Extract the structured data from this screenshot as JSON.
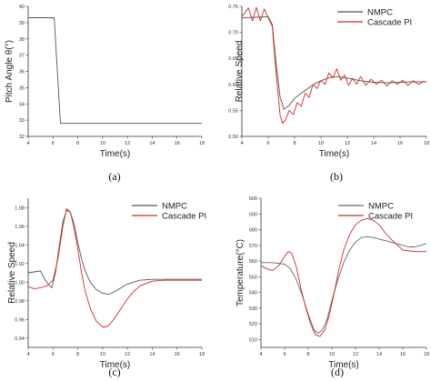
{
  "chart_data": [
    {
      "type": "line",
      "caption": "(a)",
      "xlabel": "Time(s)",
      "ylabel": "Pitch Angle θ(°)",
      "xlim": [
        4,
        18
      ],
      "ylim": [
        32,
        40
      ],
      "xticks": [
        4,
        6,
        8,
        10,
        12,
        14,
        16,
        18
      ],
      "yticks": [
        32,
        33,
        34,
        35,
        36,
        37,
        38,
        39,
        40
      ],
      "legend": "none",
      "series": [
        {
          "color": "#555555",
          "x": [
            4,
            6.1,
            6.6,
            18
          ],
          "y": [
            39.3,
            39.3,
            32.8,
            32.8
          ]
        }
      ]
    },
    {
      "type": "line",
      "caption": "(b)",
      "xlabel": "Time(s)",
      "ylabel": "Relative Speed",
      "xlim": [
        4,
        18
      ],
      "ylim": [
        0.5,
        0.75
      ],
      "xticks": [
        4,
        6,
        8,
        10,
        12,
        14,
        16,
        18
      ],
      "yticks": [
        0.5,
        0.55,
        0.6,
        0.65,
        0.7,
        0.75
      ],
      "legend": "top-right",
      "series": [
        {
          "name": "NMPC",
          "color": "#555555",
          "x": [
            4,
            5,
            6,
            6.3,
            6.6,
            6.9,
            7.2,
            7.6,
            8,
            8.5,
            9,
            9.5,
            10,
            10.5,
            11,
            11.5,
            12,
            13,
            14,
            15,
            16,
            17,
            18
          ],
          "y": [
            0.728,
            0.729,
            0.73,
            0.715,
            0.64,
            0.575,
            0.552,
            0.56,
            0.573,
            0.583,
            0.592,
            0.601,
            0.607,
            0.612,
            0.615,
            0.614,
            0.612,
            0.607,
            0.604,
            0.603,
            0.604,
            0.605,
            0.605
          ]
        },
        {
          "name": "Cascade PI",
          "color": "#d22b2b",
          "x": [
            4,
            4.5,
            4.8,
            5.1,
            5.4,
            5.7,
            6,
            6.3,
            6.6,
            6.9,
            7.1,
            7.3,
            7.6,
            7.9,
            8.2,
            8.5,
            8.8,
            9.1,
            9.4,
            9.7,
            10,
            10.3,
            10.6,
            10.9,
            11.2,
            11.5,
            11.8,
            12.1,
            12.4,
            12.7,
            13,
            13.4,
            13.8,
            14.2,
            14.6,
            15,
            15.4,
            15.8,
            16.2,
            16.6,
            17,
            17.4,
            17.8,
            18
          ],
          "y": [
            0.73,
            0.747,
            0.722,
            0.748,
            0.722,
            0.745,
            0.728,
            0.712,
            0.62,
            0.54,
            0.525,
            0.532,
            0.55,
            0.542,
            0.565,
            0.558,
            0.583,
            0.575,
            0.6,
            0.592,
            0.608,
            0.6,
            0.622,
            0.612,
            0.63,
            0.608,
            0.618,
            0.598,
            0.612,
            0.6,
            0.615,
            0.598,
            0.61,
            0.6,
            0.608,
            0.597,
            0.607,
            0.6,
            0.608,
            0.598,
            0.607,
            0.6,
            0.606,
            0.604
          ]
        }
      ]
    },
    {
      "type": "line",
      "caption": "(c)",
      "xlabel": "Time(s)",
      "ylabel": "Relative Speed",
      "xlim": [
        4,
        18
      ],
      "ylim": [
        0.93,
        1.09
      ],
      "xticks": [
        4,
        6,
        8,
        10,
        12,
        14,
        16,
        18
      ],
      "yticks": [
        0.94,
        0.96,
        0.98,
        1.0,
        1.02,
        1.04,
        1.06,
        1.08
      ],
      "legend": "top-right",
      "series": [
        {
          "name": "NMPC",
          "color": "#555555",
          "x": [
            4,
            4.5,
            5,
            5.3,
            5.6,
            5.9,
            6.2,
            6.5,
            6.8,
            7.1,
            7.4,
            7.7,
            8,
            8.3,
            8.6,
            9,
            9.5,
            10,
            10.5,
            11,
            11.5,
            12,
            13,
            14,
            15,
            16,
            17,
            18
          ],
          "y": [
            1.01,
            1.011,
            1.012,
            1.004,
            0.998,
            0.994,
            1.01,
            1.038,
            1.065,
            1.077,
            1.075,
            1.062,
            1.042,
            1.025,
            1.012,
            1.0,
            0.992,
            0.988,
            0.987,
            0.99,
            0.994,
            0.998,
            1.002,
            1.003,
            1.003,
            1.003,
            1.003,
            1.003
          ]
        },
        {
          "name": "Cascade PI",
          "color": "#d22b2b",
          "x": [
            4,
            4.5,
            5,
            5.5,
            6,
            6.4,
            6.8,
            7.1,
            7.4,
            7.7,
            8,
            8.3,
            8.6,
            9,
            9.5,
            10,
            10.3,
            10.6,
            11,
            11.5,
            12,
            12.5,
            13,
            14,
            15,
            16,
            17,
            18
          ],
          "y": [
            0.995,
            0.993,
            0.994,
            0.996,
            1.002,
            1.025,
            1.06,
            1.079,
            1.075,
            1.058,
            1.035,
            1.01,
            0.99,
            0.972,
            0.958,
            0.952,
            0.952,
            0.955,
            0.962,
            0.972,
            0.982,
            0.99,
            0.996,
            1.001,
            1.002,
            1.002,
            1.002,
            1.002
          ]
        }
      ]
    },
    {
      "type": "line",
      "caption": "(d)",
      "xlabel": "Time(s)",
      "ylabel": "Temperature(°C)",
      "xlim": [
        4,
        18
      ],
      "ylim": [
        505,
        600
      ],
      "xticks": [
        4,
        6,
        8,
        10,
        12,
        14,
        16,
        18
      ],
      "yticks": [
        510,
        520,
        530,
        540,
        550,
        560,
        570,
        580,
        590,
        600
      ],
      "legend": "top-right",
      "series": [
        {
          "name": "NMPC",
          "color": "#666666",
          "x": [
            4,
            5,
            6,
            6.5,
            7,
            7.5,
            8,
            8.5,
            8.8,
            9.2,
            9.6,
            10,
            10.5,
            11,
            11.5,
            12,
            12.5,
            13,
            13.5,
            14,
            15,
            16,
            16.5,
            17,
            17.5,
            18
          ],
          "y": [
            559,
            559,
            558,
            555,
            548,
            538,
            526,
            516,
            514,
            516,
            523,
            535,
            548,
            559,
            567,
            572,
            575,
            575.5,
            575,
            574,
            572,
            570,
            569,
            569,
            570,
            571
          ]
        },
        {
          "name": "Cascade PI",
          "color": "#d22b2b",
          "x": [
            4,
            4.5,
            5,
            5.5,
            6,
            6.3,
            6.6,
            7,
            7.4,
            7.8,
            8.2,
            8.6,
            9,
            9.4,
            9.8,
            10.2,
            10.6,
            11,
            11.5,
            12,
            12.5,
            13,
            13.5,
            14,
            14.5,
            15,
            16,
            17,
            18
          ],
          "y": [
            557,
            555,
            554,
            557,
            563,
            566,
            565,
            556,
            542,
            530,
            520,
            513,
            512,
            516,
            526,
            540,
            555,
            567,
            577,
            583,
            586,
            587,
            586,
            583,
            578,
            574,
            567,
            566,
            566
          ]
        }
      ]
    }
  ]
}
